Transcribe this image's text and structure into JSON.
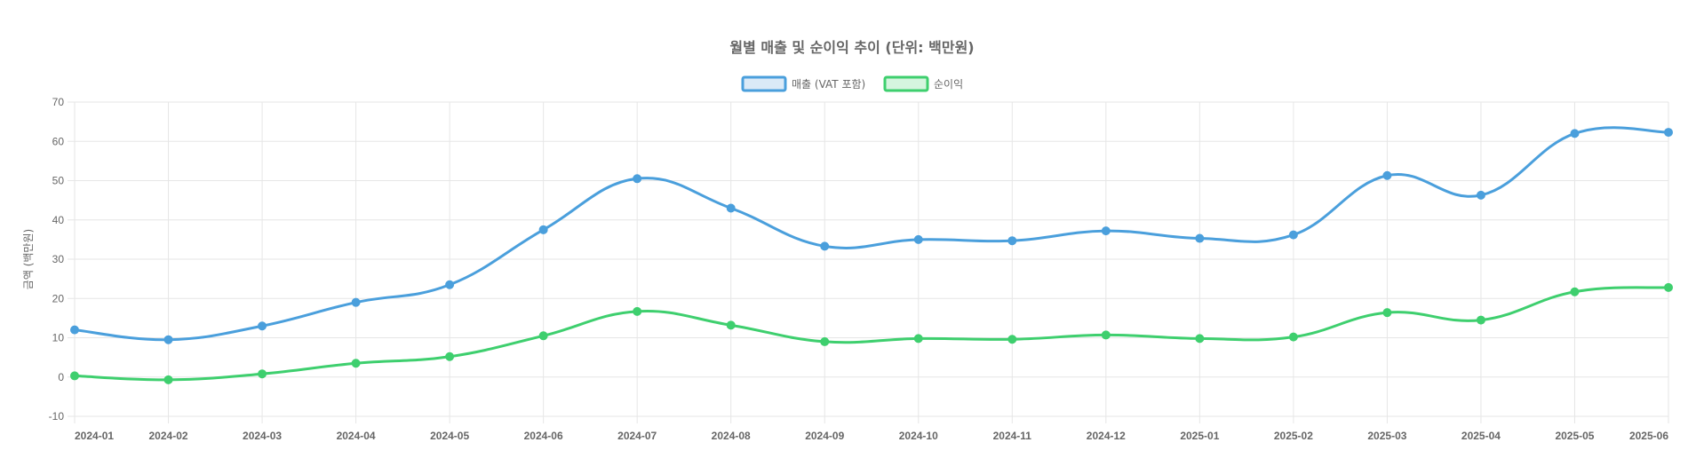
{
  "chart_data": {
    "type": "line",
    "title": "월별 매출 및 순이익 추이 (단위: 백만원)",
    "ylabel": "금액 (백만원)",
    "xlabel": "",
    "ylim": [
      -10,
      70
    ],
    "yticks": [
      -10,
      0,
      10,
      20,
      30,
      40,
      50,
      60,
      70
    ],
    "grid": true,
    "legend_position": "top-center",
    "categories": [
      "2024-01",
      "2024-02",
      "2024-03",
      "2024-04",
      "2024-05",
      "2024-06",
      "2024-07",
      "2024-08",
      "2024-09",
      "2024-10",
      "2024-11",
      "2024-12",
      "2025-01",
      "2025-02",
      "2025-03",
      "2025-04",
      "2025-05",
      "2025-06"
    ],
    "series": [
      {
        "name": "매출 (VAT 포함)",
        "color": "#4a9fdc",
        "fill": "#dbeaf7",
        "values": [
          12,
          9.5,
          13,
          19,
          23.5,
          37.5,
          50.5,
          43,
          33.3,
          35,
          34.7,
          37.2,
          35.3,
          36.2,
          51.3,
          46.3,
          62,
          62.3
        ]
      },
      {
        "name": "순이익",
        "color": "#3ecf6e",
        "fill": "#d5f5df",
        "values": [
          0.3,
          -0.7,
          0.8,
          3.5,
          5.2,
          10.5,
          16.7,
          13.2,
          9,
          9.8,
          9.6,
          10.7,
          9.8,
          10.2,
          16.4,
          14.5,
          21.7,
          22.8
        ]
      }
    ]
  }
}
